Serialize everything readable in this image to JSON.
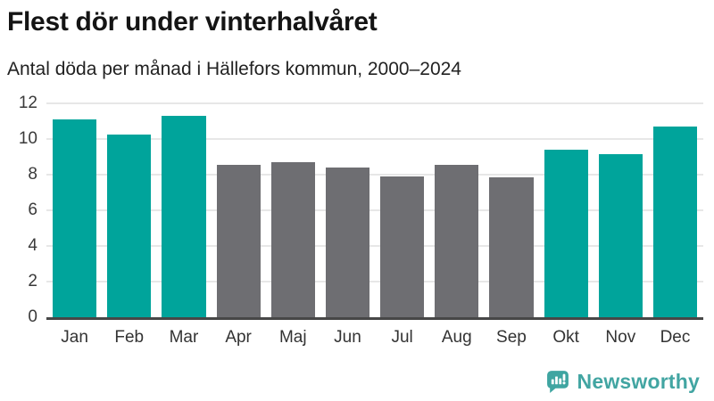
{
  "header": {
    "title": "Flest dör under vinterhalvåret",
    "subtitle": "Antal döda per månad i Hällefors kommun, 2000–2024"
  },
  "chart_data": {
    "type": "bar",
    "title": "Flest dör under vinterhalvåret",
    "subtitle": "Antal döda per månad i Hällefors kommun, 2000–2024",
    "categories": [
      "Jan",
      "Feb",
      "Mar",
      "Apr",
      "Maj",
      "Jun",
      "Jul",
      "Aug",
      "Sep",
      "Okt",
      "Nov",
      "Dec"
    ],
    "values": [
      11.1,
      10.25,
      11.3,
      8.55,
      8.7,
      8.4,
      7.9,
      8.55,
      7.85,
      9.4,
      9.15,
      10.7
    ],
    "bar_colors": [
      "#00a49b",
      "#00a49b",
      "#00a49b",
      "#6e6e72",
      "#6e6e72",
      "#6e6e72",
      "#6e6e72",
      "#6e6e72",
      "#6e6e72",
      "#00a49b",
      "#00a49b",
      "#00a49b"
    ],
    "xlabel": "",
    "ylabel": "",
    "ylim": [
      0,
      12
    ],
    "yticks": [
      0,
      2,
      4,
      6,
      8,
      10,
      12
    ],
    "grid": true,
    "legend": "none"
  },
  "colors": {
    "winter_teal": "#00a49b",
    "summer_gray": "#6e6e72",
    "gridline": "#e7e7e7",
    "axis_line": "#474747",
    "logo_teal": "#42a5a2"
  },
  "footer": {
    "brand": "Newsworthy"
  }
}
